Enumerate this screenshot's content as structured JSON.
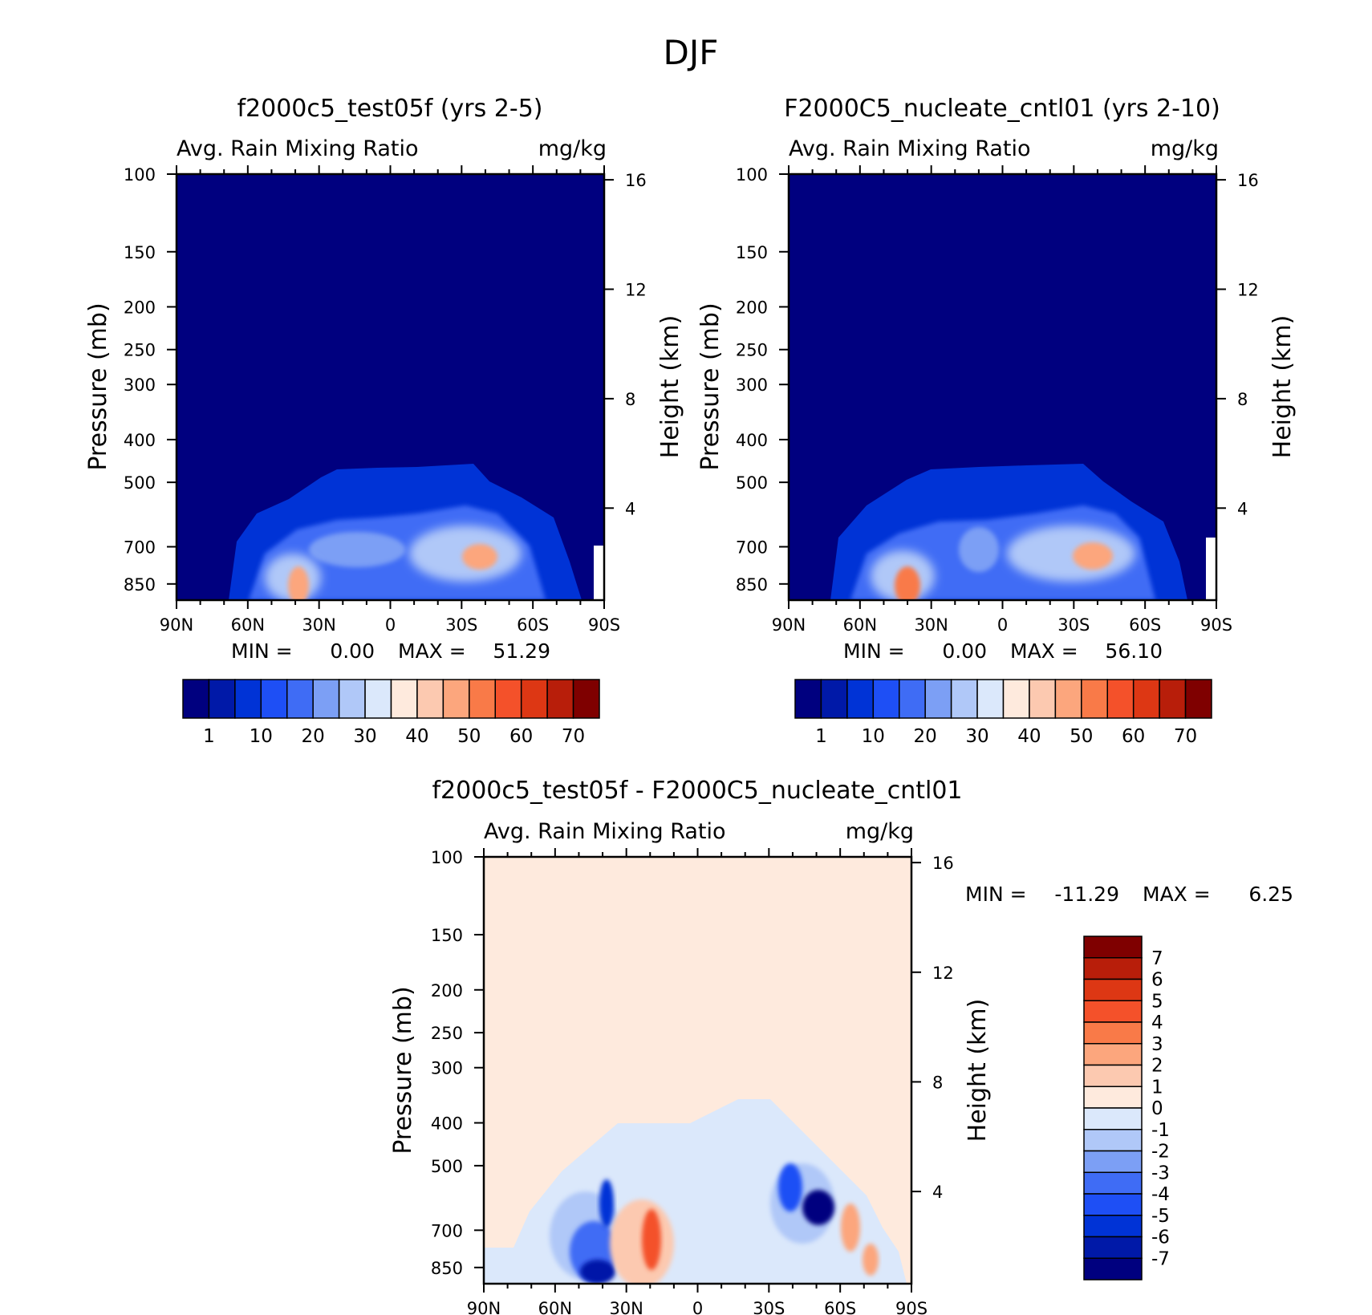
{
  "figure_title": "DJF",
  "chart_data": [
    {
      "type": "heatmap",
      "title": "f2000c5_test05f (yrs 2-5)",
      "variable": "Avg. Rain Mixing Ratio",
      "units": "mg/kg",
      "ylabel": "Pressure (mb)",
      "ylabel_right": "Height (km)",
      "x_ticks": [
        "90N",
        "60N",
        "30N",
        "0",
        "30S",
        "60S",
        "90S"
      ],
      "y_ticks": [
        100,
        150,
        200,
        250,
        300,
        400,
        500,
        700,
        850
      ],
      "y_right_ticks": [
        16,
        12,
        8,
        4
      ],
      "min_label": "MIN =",
      "min_value": "0.00",
      "max_label": "MAX =",
      "max_value": "51.29",
      "colorbar_levels": [
        "1",
        "10",
        "20",
        "30",
        "40",
        "50",
        "60",
        "70"
      ],
      "colorbar_colors": [
        "#00007f",
        "#0019a8",
        "#0033d6",
        "#1e4ff5",
        "#3f6cf5",
        "#7c9ff5",
        "#b0c8f8",
        "#dbe8fb",
        "#feeadd",
        "#fcc9b0",
        "#fca67d",
        "#f97a48",
        "#f4512a",
        "#dd3714",
        "#b81e0a",
        "#7f0000"
      ],
      "features": [
        {
          "lat": -40,
          "p": 880,
          "value": 45
        },
        {
          "lat": 25,
          "p": 710,
          "value": 51.29
        },
        {
          "lat": 0,
          "p": 700,
          "value": 20
        }
      ]
    },
    {
      "type": "heatmap",
      "title": "F2000C5_nucleate_cntl01 (yrs 2-10)",
      "variable": "Avg. Rain Mixing Ratio",
      "units": "mg/kg",
      "ylabel": "Pressure (mb)",
      "ylabel_right": "Height (km)",
      "x_ticks": [
        "90N",
        "60N",
        "30N",
        "0",
        "30S",
        "60S",
        "90S"
      ],
      "y_ticks": [
        100,
        150,
        200,
        250,
        300,
        400,
        500,
        700,
        850
      ],
      "y_right_ticks": [
        16,
        12,
        8,
        4
      ],
      "min_label": "MIN =",
      "min_value": "0.00",
      "max_label": "MAX =",
      "max_value": "56.10",
      "colorbar_levels": [
        "1",
        "10",
        "20",
        "30",
        "40",
        "50",
        "60",
        "70"
      ],
      "colorbar_colors": [
        "#00007f",
        "#0019a8",
        "#0033d6",
        "#1e4ff5",
        "#3f6cf5",
        "#7c9ff5",
        "#b0c8f8",
        "#dbe8fb",
        "#feeadd",
        "#fcc9b0",
        "#fca67d",
        "#f97a48",
        "#f4512a",
        "#dd3714",
        "#b81e0a",
        "#7f0000"
      ],
      "features": [
        {
          "lat": -42,
          "p": 880,
          "value": 50
        },
        {
          "lat": 22,
          "p": 700,
          "value": 56.1
        },
        {
          "lat": -12,
          "p": 690,
          "value": 25
        }
      ]
    },
    {
      "type": "heatmap",
      "title": "f2000c5_test05f - F2000C5_nucleate_cntl01",
      "variable": "Avg. Rain Mixing Ratio",
      "units": "mg/kg",
      "ylabel": "Pressure (mb)",
      "ylabel_right": "Height (km)",
      "x_ticks": [
        "90N",
        "60N",
        "30N",
        "0",
        "30S",
        "60S",
        "90S"
      ],
      "y_ticks": [
        100,
        150,
        200,
        250,
        300,
        400,
        500,
        700,
        850
      ],
      "y_right_ticks": [
        16,
        12,
        8,
        4
      ],
      "min_label": "MIN =",
      "min_value": "-11.29",
      "max_label": "MAX =",
      "max_value": "6.25",
      "colorbar_levels": [
        "7",
        "6",
        "5",
        "4",
        "3",
        "2",
        "1",
        "0",
        "-1",
        "-2",
        "-3",
        "-4",
        "-5",
        "-6",
        "-7"
      ],
      "colorbar_colors": [
        "#7f0000",
        "#b81e0a",
        "#dd3714",
        "#f4512a",
        "#f97a48",
        "#fca67d",
        "#fcc9b0",
        "#feeadd",
        "#dbe8fb",
        "#b0c8f8",
        "#7c9ff5",
        "#3f6cf5",
        "#1e4ff5",
        "#0033d6",
        "#0019a8",
        "#00007f"
      ],
      "features": [
        {
          "lat": 38,
          "p": 620,
          "value": -11.29
        },
        {
          "lat": -50,
          "p": 620,
          "value": -9
        },
        {
          "lat": -35,
          "p": 540,
          "value": -6
        },
        {
          "lat": 20,
          "p": 720,
          "value": 6.25
        },
        {
          "lat": 40,
          "p": 850,
          "value": -6
        }
      ]
    }
  ]
}
